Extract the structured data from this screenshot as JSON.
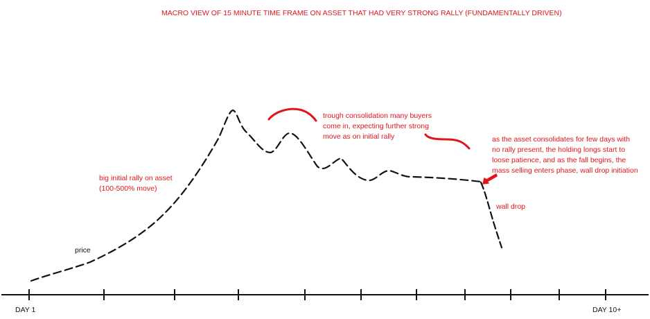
{
  "title": "MACRO VIEW OF 15 MINUTE TIME FRAME ON ASSET THAT HAD VERY STRONG RALLY (FUNDAMENTALLY DRIVEN)",
  "annotations": {
    "rally": [
      "big initial rally on asset",
      "(100-500% move)"
    ],
    "price": "price",
    "trough": [
      "trough consolidation many buyers",
      "come in, expecting further strong",
      "move as on initial rally"
    ],
    "consolidation": [
      "as the asset consolidates for few days with",
      "no rally present, the holding longs start to",
      "loose patience, and as the fall begins, the",
      "mass selling enters phase, wall drop initiation"
    ],
    "wall_drop": "wall drop"
  },
  "axis": {
    "start_label": "DAY 1",
    "end_label": "DAY 10+"
  },
  "colors": {
    "annotation": "#e0151b",
    "line": "#111111"
  }
}
